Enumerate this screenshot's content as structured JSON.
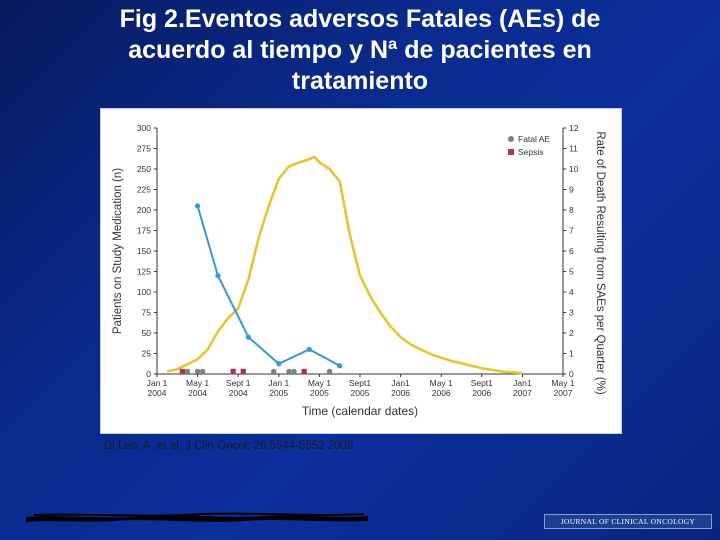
{
  "slide": {
    "title_lines": [
      "Fig 2.Eventos adversos  Fatales (AEs) de",
      "acuerdo al tiempo y Nª de pacientes en",
      "tratamiento"
    ],
    "citation": "Di Leo, A. et al. J Clin Oncol; 26:5544-5552 2008",
    "journal_logo_text": "JOURNAL OF CLINICAL ONCOLOGY"
  },
  "chart_data": {
    "type": "line",
    "xlabel": "Time (calendar dates)",
    "ylabel": "Patients on Study Medication (n)",
    "y2label": "Rate of Death Resulting from SAEs per Quarter (%)",
    "ylim": [
      0,
      300
    ],
    "y2lim": [
      0,
      12
    ],
    "xlim": [
      0,
      40
    ],
    "yticks": [
      0,
      25,
      50,
      75,
      100,
      125,
      150,
      175,
      200,
      225,
      250,
      275,
      300
    ],
    "y2ticks": [
      0,
      1,
      2,
      3,
      4,
      5,
      6,
      7,
      8,
      9,
      10,
      11,
      12
    ],
    "xticks": [
      {
        "x": 0,
        "lines": [
          "Jan 1",
          "2004"
        ]
      },
      {
        "x": 4,
        "lines": [
          "May 1",
          "2004"
        ]
      },
      {
        "x": 8,
        "lines": [
          "Sept 1",
          "2004"
        ]
      },
      {
        "x": 12,
        "lines": [
          "Jan 1",
          "2005"
        ]
      },
      {
        "x": 16,
        "lines": [
          "May 1",
          "2005"
        ]
      },
      {
        "x": 20,
        "lines": [
          "Sept1",
          "2005"
        ]
      },
      {
        "x": 24,
        "lines": [
          "Jan1",
          "2006"
        ]
      },
      {
        "x": 28,
        "lines": [
          "May 1",
          "2006"
        ]
      },
      {
        "x": 32,
        "lines": [
          "Sept1",
          "2006"
        ]
      },
      {
        "x": 36,
        "lines": [
          "Jan1",
          "2007"
        ]
      },
      {
        "x": 40,
        "lines": [
          "May 1",
          "2007"
        ]
      }
    ],
    "legend_position": "top-right",
    "legend": [
      {
        "name": "Fatal AE",
        "color": "#808080",
        "shape": "circle"
      },
      {
        "name": "Sepsis",
        "color": "#b03050",
        "shape": "square"
      }
    ],
    "series": [
      {
        "axis": "left",
        "color": "#e8c430",
        "x": [
          1,
          2,
          3,
          4,
          5,
          6,
          7,
          8,
          9,
          10,
          11,
          12,
          13,
          14,
          15,
          15.5,
          16,
          17,
          18,
          19,
          20,
          21,
          22,
          23,
          24,
          25,
          26,
          27,
          28,
          29,
          30,
          31,
          32,
          33,
          34,
          35,
          36
        ],
        "values": [
          3,
          6,
          12,
          18,
          30,
          52,
          68,
          80,
          115,
          165,
          205,
          238,
          253,
          258,
          262,
          265,
          258,
          250,
          235,
          170,
          120,
          95,
          75,
          58,
          45,
          36,
          30,
          24,
          20,
          16,
          13,
          10,
          7,
          5,
          3,
          2,
          1
        ]
      },
      {
        "axis": "right",
        "color": "#3399dd",
        "x": [
          4,
          6,
          9,
          12,
          15,
          18
        ],
        "values": [
          8.2,
          4.8,
          1.8,
          0.5,
          1.2,
          0.4
        ]
      }
    ],
    "fatal_ae_x": [
      3,
      4,
      4.5,
      11.5,
      13,
      13.5,
      17
    ],
    "sepsis_x": [
      2.5,
      7.5,
      8.5,
      14.5
    ]
  }
}
